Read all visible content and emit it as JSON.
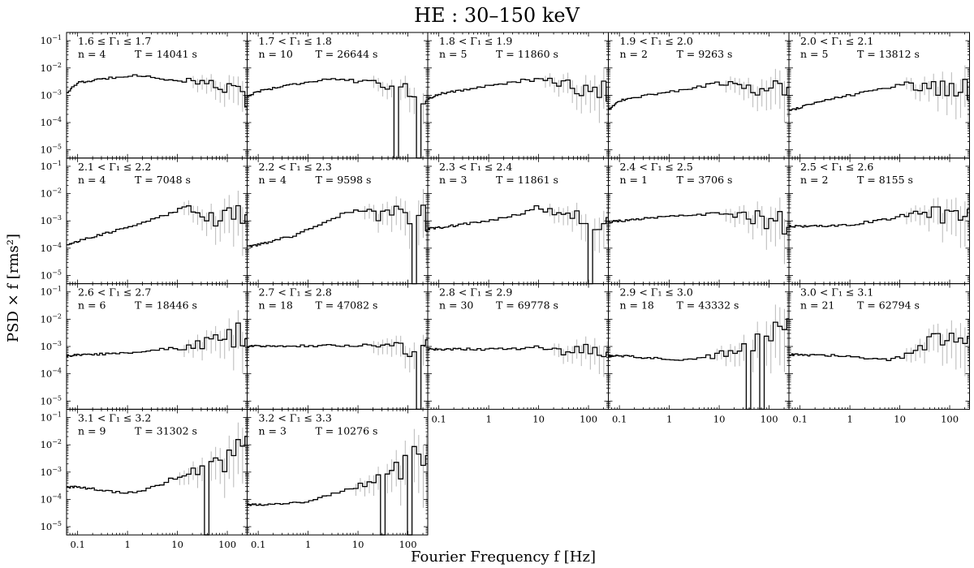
{
  "figure": {
    "title": "HE :  30–150 keV",
    "xlabel": "Fourier Frequency f [Hz]",
    "ylabel": "PSD × f [rms²]"
  },
  "axes": {
    "xscale": "log",
    "yscale": "log",
    "xlim": [
      0.06,
      250
    ],
    "ylim": [
      5e-06,
      0.2
    ],
    "xticks": [
      0.1,
      1,
      10,
      100
    ],
    "xticklabels": [
      "0.1",
      "1",
      "10",
      "100"
    ],
    "yticks": [
      1e-05,
      0.0001,
      0.001,
      0.01,
      0.1
    ],
    "yticklabels": [
      [
        "10",
        "−5"
      ],
      [
        "10",
        "−4"
      ],
      [
        "10",
        "−3"
      ],
      [
        "10",
        "−2"
      ],
      [
        "10",
        "−1"
      ]
    ],
    "style": {
      "step_color": "#000000",
      "errbar_color": "#b0b0b0"
    }
  },
  "chart_data": {
    "type": "line",
    "panels": [
      {
        "g1": "1.6 ≤ Γ₁ ≤ 1.7",
        "n": "n = 4",
        "t": "T = 14041 s",
        "shape": [
          [
            0.06,
            -2.92
          ],
          [
            0.1,
            -2.55
          ],
          [
            0.5,
            -2.35
          ],
          [
            1.5,
            -2.25
          ],
          [
            5,
            -2.4
          ],
          [
            20,
            -2.5
          ],
          [
            60,
            -2.55
          ],
          [
            120,
            -2.9
          ],
          [
            250,
            -3.1
          ]
        ],
        "noise": 0.35
      },
      {
        "g1": "1.7 < Γ₁ ≤ 1.8",
        "n": "n = 10",
        "t": "T = 26644 s",
        "shape": [
          [
            0.06,
            -3.05
          ],
          [
            0.1,
            -2.85
          ],
          [
            0.5,
            -2.6
          ],
          [
            3,
            -2.38
          ],
          [
            10,
            -2.5
          ],
          [
            60,
            -2.7
          ],
          [
            150,
            -2.95
          ],
          [
            250,
            -3.3
          ]
        ],
        "noise": 0.35
      },
      {
        "g1": "1.8 < Γ₁ ≤ 1.9",
        "n": "n = 5",
        "t": "T = 11860 s",
        "shape": [
          [
            0.06,
            -3.15
          ],
          [
            0.1,
            -2.95
          ],
          [
            0.5,
            -2.75
          ],
          [
            5,
            -2.45
          ],
          [
            20,
            -2.5
          ],
          [
            80,
            -2.75
          ],
          [
            250,
            -2.8
          ]
        ],
        "noise": 0.5
      },
      {
        "g1": "1.9 < Γ₁ ≤ 2.0",
        "n": "n = 2",
        "t": "T = 9263 s",
        "shape": [
          [
            0.06,
            -3.55
          ],
          [
            0.1,
            -3.2
          ],
          [
            0.5,
            -2.95
          ],
          [
            2,
            -2.8
          ],
          [
            10,
            -2.55
          ],
          [
            40,
            -2.7
          ],
          [
            250,
            -2.85
          ]
        ],
        "noise": 0.5
      },
      {
        "g1": "2.0 < Γ₁ ≤ 2.1",
        "n": "n = 5",
        "t": "T = 13812 s",
        "shape": [
          [
            0.06,
            -3.55
          ],
          [
            0.1,
            -3.45
          ],
          [
            0.5,
            -3.1
          ],
          [
            2,
            -2.9
          ],
          [
            10,
            -2.6
          ],
          [
            30,
            -2.7
          ],
          [
            250,
            -2.8
          ]
        ],
        "noise": 0.5
      },
      {
        "g1": "2.1 < Γ₁ ≤ 2.2",
        "n": "n = 4",
        "t": "T = 7048 s",
        "shape": [
          [
            0.06,
            -3.9
          ],
          [
            0.1,
            -3.75
          ],
          [
            0.5,
            -3.4
          ],
          [
            2,
            -3.05
          ],
          [
            8,
            -2.7
          ],
          [
            15,
            -2.5
          ],
          [
            30,
            -2.8
          ],
          [
            250,
            -3.0
          ]
        ],
        "noise": 0.6
      },
      {
        "g1": "2.2 < Γ₁ ≤ 2.3",
        "n": "n = 4",
        "t": "T = 9598 s",
        "shape": [
          [
            0.06,
            -3.95
          ],
          [
            0.1,
            -3.88
          ],
          [
            0.5,
            -3.55
          ],
          [
            2,
            -3.1
          ],
          [
            10,
            -2.5
          ],
          [
            30,
            -2.85
          ],
          [
            100,
            -2.75
          ],
          [
            250,
            -3.0
          ]
        ],
        "noise": 0.6
      },
      {
        "g1": "2.3 < Γ₁ ≤ 2.4",
        "n": "n = 3",
        "t": "T = 11861 s",
        "shape": [
          [
            0.06,
            -3.3
          ],
          [
            0.1,
            -3.25
          ],
          [
            1,
            -3.0
          ],
          [
            5,
            -2.7
          ],
          [
            10,
            -2.5
          ],
          [
            40,
            -2.8
          ],
          [
            100,
            -3.0
          ],
          [
            250,
            -3.1
          ]
        ],
        "noise": 0.45
      },
      {
        "g1": "2.4 < Γ₁ ≤ 2.5",
        "n": "n = 1",
        "t": "T = 3706 s",
        "shape": [
          [
            0.06,
            -3.05
          ],
          [
            0.1,
            -3.0
          ],
          [
            1,
            -2.85
          ],
          [
            10,
            -2.75
          ],
          [
            30,
            -2.9
          ],
          [
            250,
            -2.95
          ]
        ],
        "noise": 0.55
      },
      {
        "g1": "2.5 < Γ₁ ≤ 2.6",
        "n": "n = 2",
        "t": "T = 8155 s",
        "shape": [
          [
            0.06,
            -3.2
          ],
          [
            0.1,
            -3.2
          ],
          [
            1,
            -3.15
          ],
          [
            10,
            -2.85
          ],
          [
            30,
            -2.7
          ],
          [
            250,
            -2.9
          ]
        ],
        "noise": 0.55
      },
      {
        "g1": "2.6 < Γ₁ ≤ 2.7",
        "n": "n = 6",
        "t": "T = 18446 s",
        "shape": [
          [
            0.06,
            -3.35
          ],
          [
            0.1,
            -3.3
          ],
          [
            1,
            -3.25
          ],
          [
            10,
            -3.05
          ],
          [
            50,
            -2.85
          ],
          [
            250,
            -2.5
          ]
        ],
        "noise": 0.5
      },
      {
        "g1": "2.7 < Γ₁ ≤ 2.8",
        "n": "n = 18",
        "t": "T = 47082 s",
        "shape": [
          [
            0.06,
            -3.0
          ],
          [
            0.1,
            -2.98
          ],
          [
            1,
            -2.98
          ],
          [
            10,
            -2.95
          ],
          [
            50,
            -3.0
          ],
          [
            100,
            -3.15
          ],
          [
            250,
            -3.0
          ]
        ],
        "noise": 0.35
      },
      {
        "g1": "2.8 < Γ₁ ≤ 2.9",
        "n": "n = 30",
        "t": "T = 69778 s",
        "shape": [
          [
            0.06,
            -3.1
          ],
          [
            0.1,
            -3.1
          ],
          [
            1,
            -3.1
          ],
          [
            10,
            -3.05
          ],
          [
            30,
            -3.2
          ],
          [
            250,
            -3.1
          ]
        ],
        "noise": 0.35
      },
      {
        "g1": "2.9 < Γ₁ ≤ 3.0",
        "n": "n = 18",
        "t": "T = 43332 s",
        "shape": [
          [
            0.06,
            -3.35
          ],
          [
            0.1,
            -3.35
          ],
          [
            1,
            -3.45
          ],
          [
            3,
            -3.5
          ],
          [
            10,
            -3.3
          ],
          [
            50,
            -2.9
          ],
          [
            250,
            -2.6
          ]
        ],
        "noise": 0.8
      },
      {
        "g1": "3.0 < Γ₁ ≤ 3.1",
        "n": "n = 21",
        "t": "T = 62794 s",
        "shape": [
          [
            0.06,
            -3.3
          ],
          [
            0.1,
            -3.3
          ],
          [
            1,
            -3.35
          ],
          [
            5,
            -3.5
          ],
          [
            15,
            -3.3
          ],
          [
            50,
            -2.8
          ],
          [
            250,
            -2.5
          ]
        ],
        "noise": 0.6
      },
      {
        "g1": "3.1 < Γ₁ ≤ 3.2",
        "n": "n = 9",
        "t": "T = 31302 s",
        "shape": [
          [
            0.06,
            -3.55
          ],
          [
            0.1,
            -3.55
          ],
          [
            0.7,
            -3.75
          ],
          [
            2,
            -3.7
          ],
          [
            10,
            -3.2
          ],
          [
            50,
            -2.8
          ],
          [
            250,
            -2.3
          ]
        ],
        "noise": 0.7
      },
      {
        "g1": "3.2 < Γ₁ ≤ 3.3",
        "n": "n = 3",
        "t": "T = 10276 s",
        "shape": [
          [
            0.06,
            -4.2
          ],
          [
            0.1,
            -4.2
          ],
          [
            1,
            -4.1
          ],
          [
            10,
            -3.5
          ],
          [
            50,
            -3.0
          ],
          [
            250,
            -2.3
          ]
        ],
        "noise": 0.8
      }
    ]
  }
}
